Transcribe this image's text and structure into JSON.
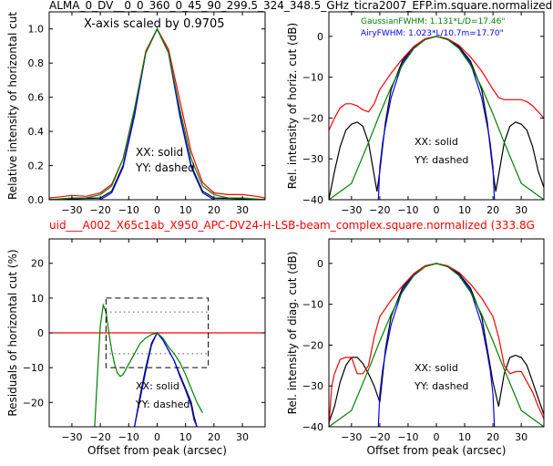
{
  "figure": {
    "title": "ALMA_0_DV__0_0_360_0_45_90_299.5_324_348.5_GHz_ticra2007_EFP.im.square.normalized",
    "subtitle": "uid___A002_X65c1ab_X950_APC-DV24-H-LSB-beam_complex.square.normalized (333.8G",
    "colors": {
      "black": "#000000",
      "red": "#ff0000",
      "green": "#008000",
      "blue": "#0000ff"
    }
  },
  "chart_data": [
    {
      "id": "top-left",
      "type": "line",
      "xlabel": "",
      "ylabel": "Relative intensity of horizontal cut",
      "xlim": [
        -38,
        38
      ],
      "ylim": [
        0,
        1.1
      ],
      "xticks": [
        -30,
        -20,
        -10,
        0,
        10,
        20,
        30
      ],
      "yticks": [
        0.0,
        0.2,
        0.4,
        0.6,
        0.8,
        1.0
      ],
      "ytick_labels": [
        "0.0",
        "0.2",
        "0.4",
        "0.6",
        "0.8",
        "1.0"
      ],
      "annotations": [
        "X-axis scaled by 0.9705",
        "XX: solid",
        "YY: dashed"
      ],
      "series": [
        {
          "color": "black",
          "x": [
            -38,
            -30,
            -25,
            -20,
            -16,
            -12,
            -8,
            -4,
            0,
            4,
            8,
            12,
            16,
            20,
            25,
            30,
            38
          ],
          "y": [
            0.0,
            0.005,
            0.008,
            0.01,
            0.05,
            0.2,
            0.5,
            0.86,
            1.0,
            0.86,
            0.5,
            0.2,
            0.05,
            0.01,
            0.008,
            0.005,
            0.0
          ]
        },
        {
          "color": "blue",
          "x": [
            -38,
            -30,
            -25,
            -20,
            -16,
            -12,
            -8,
            -4,
            0,
            4,
            8,
            12,
            16,
            20,
            25,
            30,
            38
          ],
          "y": [
            0.0,
            0.0,
            0.0,
            0.0,
            0.04,
            0.19,
            0.49,
            0.86,
            1.0,
            0.86,
            0.49,
            0.19,
            0.04,
            0.0,
            0.0,
            0.0,
            0.0
          ]
        },
        {
          "color": "red",
          "x": [
            -38,
            -35,
            -30,
            -25,
            -20,
            -16,
            -12,
            -8,
            -4,
            0,
            4,
            8,
            12,
            16,
            20,
            25,
            30,
            35,
            38
          ],
          "y": [
            0.01,
            0.015,
            0.025,
            0.02,
            0.04,
            0.09,
            0.24,
            0.53,
            0.87,
            1.0,
            0.88,
            0.58,
            0.28,
            0.1,
            0.04,
            0.03,
            0.03,
            0.02,
            0.01
          ]
        },
        {
          "color": "green",
          "x": [
            -38,
            -30,
            -25,
            -20,
            -16,
            -12,
            -8,
            -4,
            0,
            4,
            8,
            12,
            16,
            20,
            25,
            30,
            38
          ],
          "y": [
            0.0,
            0.01,
            0.01,
            0.03,
            0.08,
            0.24,
            0.53,
            0.86,
            1.0,
            0.86,
            0.53,
            0.24,
            0.08,
            0.03,
            0.01,
            0.01,
            0.0
          ]
        }
      ]
    },
    {
      "id": "top-right",
      "type": "line",
      "xlabel": "",
      "ylabel": "Rel. intensity of horiz. cut (dB)",
      "xlim": [
        -38,
        38
      ],
      "ylim": [
        -40,
        6
      ],
      "xticks": [
        -30,
        -20,
        -10,
        0,
        10,
        20,
        30
      ],
      "yticks": [
        -40,
        -30,
        -20,
        -10,
        0
      ],
      "ytick_labels": [
        "−40",
        "−30",
        "−20",
        "−10",
        "0"
      ],
      "annotations": [
        "GaussianFWHM: 1.131*L/D=17.46\"",
        "AiryFWHM: 1.023*L/10.7m=17.70\"",
        "XX: solid",
        "YY: dashed"
      ],
      "series": [
        {
          "color": "black",
          "x": [
            -38,
            -36,
            -34,
            -32,
            -30,
            -28,
            -26,
            -24,
            -22,
            -21,
            -20,
            -18,
            -16,
            -12,
            -8,
            -4,
            0,
            4,
            8,
            12,
            16,
            18,
            20,
            21,
            22,
            24,
            26,
            28,
            30,
            32,
            34,
            36,
            38
          ],
          "y": [
            -40,
            -33,
            -27,
            -23,
            -21.5,
            -21,
            -22,
            -26,
            -34,
            -38,
            -33,
            -21,
            -13,
            -6,
            -2.5,
            -0.6,
            0,
            -0.6,
            -2.5,
            -6,
            -13,
            -21,
            -33,
            -38,
            -34,
            -26,
            -22,
            -21,
            -21.5,
            -23,
            -27,
            -33,
            -37
          ]
        },
        {
          "color": "blue",
          "x": [
            -20.5,
            -20,
            -19,
            -18,
            -16,
            -12,
            -8,
            -4,
            0,
            4,
            8,
            12,
            16,
            18,
            19,
            20,
            20.5
          ],
          "y": [
            -40,
            -32,
            -26,
            -22,
            -15,
            -6.5,
            -2.8,
            -0.7,
            0,
            -0.7,
            -2.8,
            -6.5,
            -15,
            -22,
            -26,
            -32,
            -40
          ]
        },
        {
          "color": "red",
          "x": [
            -38,
            -36,
            -34,
            -32,
            -30,
            -28,
            -26,
            -24,
            -22,
            -20,
            -16,
            -12,
            -8,
            -4,
            0,
            4,
            8,
            12,
            16,
            20,
            22,
            24,
            26,
            28,
            30,
            32,
            34,
            36,
            38
          ],
          "y": [
            -23,
            -20,
            -17.5,
            -16.5,
            -16.5,
            -17,
            -18,
            -18.5,
            -16.5,
            -13,
            -9,
            -5.5,
            -2.5,
            -0.6,
            0,
            -0.6,
            -2.2,
            -5,
            -8.5,
            -13,
            -15,
            -15.5,
            -15.5,
            -15.5,
            -15.5,
            -16,
            -17,
            -18.5,
            -20
          ]
        },
        {
          "color": "green",
          "x": [
            -38,
            -30,
            -24,
            -20,
            -16,
            -12,
            -8,
            -4,
            0,
            4,
            8,
            12,
            16,
            20,
            24,
            30,
            38
          ],
          "y": [
            -40,
            -36,
            -26,
            -19,
            -12.5,
            -7,
            -3,
            -0.8,
            0,
            -0.8,
            -3,
            -7,
            -12.5,
            -19,
            -26,
            -36,
            -40
          ]
        }
      ]
    },
    {
      "id": "bottom-left",
      "type": "line",
      "xlabel": "Offset from peak (arcsec)",
      "ylabel": "Residuals of horizontal cut (%)",
      "xlim": [
        -38,
        38
      ],
      "ylim": [
        -27,
        27
      ],
      "xticks": [
        -30,
        -20,
        -10,
        0,
        10,
        20,
        30
      ],
      "yticks": [
        -20,
        -10,
        0,
        10,
        20
      ],
      "ytick_labels": [
        "−20",
        "−10",
        "0",
        "10",
        "20"
      ],
      "annotations": [
        "XX: solid",
        "YY: dashed"
      ],
      "series": [
        {
          "color": "red",
          "x": [
            -38,
            38
          ],
          "y": [
            0,
            0
          ]
        },
        {
          "color": "black",
          "x": [
            -8,
            -6,
            -4,
            -2,
            0,
            2,
            4,
            6,
            8,
            10,
            12,
            13,
            14
          ],
          "y": [
            -27,
            -18,
            -10,
            -3,
            0,
            -2,
            -5,
            -8,
            -12,
            -16,
            -20,
            -24,
            -27
          ]
        },
        {
          "color": "blue",
          "x": [
            -8,
            -6,
            -4,
            -2,
            0,
            2,
            4,
            6,
            8,
            10,
            12,
            13,
            14
          ],
          "y": [
            -27,
            -19,
            -11,
            -3.5,
            0,
            -2,
            -5,
            -8,
            -12.5,
            -16.5,
            -21,
            -25,
            -27
          ]
        },
        {
          "color": "green",
          "x": [
            -22,
            -21,
            -20,
            -19,
            -18,
            -17,
            -16,
            -15,
            -14,
            -13,
            -12,
            -10,
            -8,
            -6,
            -4,
            -2,
            0,
            2,
            4,
            6,
            8,
            10,
            12,
            14,
            16
          ],
          "y": [
            -27,
            -12,
            2,
            8,
            6,
            0,
            -5,
            -9,
            -11.5,
            -12.5,
            -12,
            -9,
            -6,
            -3,
            -1.5,
            -0.5,
            0,
            -1.5,
            -4,
            -6,
            -8.5,
            -12,
            -16,
            -20,
            -23
          ]
        }
      ],
      "dashed_box": {
        "x": [
          -18,
          18
        ],
        "y": [
          -10,
          10
        ]
      },
      "dotted_box": {
        "x": [
          -18,
          18
        ],
        "y": [
          -6,
          6
        ]
      }
    },
    {
      "id": "bottom-right",
      "type": "line",
      "xlabel": "Offset from peak (arcsec)",
      "ylabel": "Rel. intensity of diag. cut (dB)",
      "xlim": [
        -38,
        38
      ],
      "ylim": [
        -40,
        6
      ],
      "xticks": [
        -30,
        -20,
        -10,
        0,
        10,
        20,
        30
      ],
      "yticks": [
        -40,
        -30,
        -20,
        -10,
        0
      ],
      "ytick_labels": [
        "−40",
        "−30",
        "−20",
        "−10",
        "0"
      ],
      "annotations": [
        "XX: solid",
        "YY: dashed"
      ],
      "series": [
        {
          "color": "black",
          "x": [
            -38,
            -36,
            -34,
            -32,
            -30,
            -28,
            -26,
            -24,
            -22,
            -20,
            -18,
            -16,
            -12,
            -8,
            -4,
            0,
            4,
            8,
            12,
            16,
            18,
            20,
            22,
            24,
            26,
            28,
            30,
            32,
            34,
            36,
            38
          ],
          "y": [
            -39,
            -35,
            -29,
            -25,
            -23,
            -23,
            -24.5,
            -27,
            -30,
            -34,
            -21,
            -13,
            -6,
            -2.5,
            -0.6,
            0,
            -0.6,
            -2.5,
            -6,
            -13,
            -21,
            -29,
            -35,
            -27,
            -23,
            -22.5,
            -23,
            -25,
            -29,
            -33,
            -37
          ]
        },
        {
          "color": "blue",
          "x": [
            -20.5,
            -20,
            -19,
            -18,
            -16,
            -12,
            -8,
            -4,
            0,
            4,
            8,
            12,
            16,
            18,
            19,
            20,
            20.5
          ],
          "y": [
            -40,
            -32,
            -26,
            -22,
            -15,
            -6.5,
            -2.8,
            -0.7,
            0,
            -0.7,
            -2.8,
            -6.5,
            -15,
            -22,
            -26,
            -32,
            -40
          ]
        },
        {
          "color": "red",
          "x": [
            -38,
            -37,
            -36,
            -34,
            -32,
            -30,
            -28,
            -26,
            -24,
            -22,
            -20,
            -16,
            -12,
            -8,
            -4,
            0,
            4,
            8,
            12,
            16,
            20,
            22,
            24,
            26,
            28,
            30,
            32,
            34,
            36,
            38
          ],
          "y": [
            -40,
            -30,
            -27,
            -23.5,
            -23,
            -23,
            -27,
            -27,
            -25,
            -18,
            -13,
            -9,
            -5.5,
            -2.5,
            -0.6,
            0,
            -0.6,
            -2.2,
            -5,
            -8.5,
            -13,
            -18,
            -25,
            -27,
            -26.5,
            -26.5,
            -29,
            -31.5,
            -35,
            -38
          ]
        },
        {
          "color": "green",
          "x": [
            -38,
            -30,
            -24,
            -20,
            -16,
            -12,
            -8,
            -4,
            0,
            4,
            8,
            12,
            16,
            20,
            24,
            30,
            38
          ],
          "y": [
            -40,
            -36,
            -26,
            -19,
            -12.5,
            -7,
            -3,
            -0.8,
            0,
            -0.8,
            -3,
            -7,
            -12.5,
            -19,
            -26,
            -36,
            -40
          ]
        }
      ]
    }
  ]
}
